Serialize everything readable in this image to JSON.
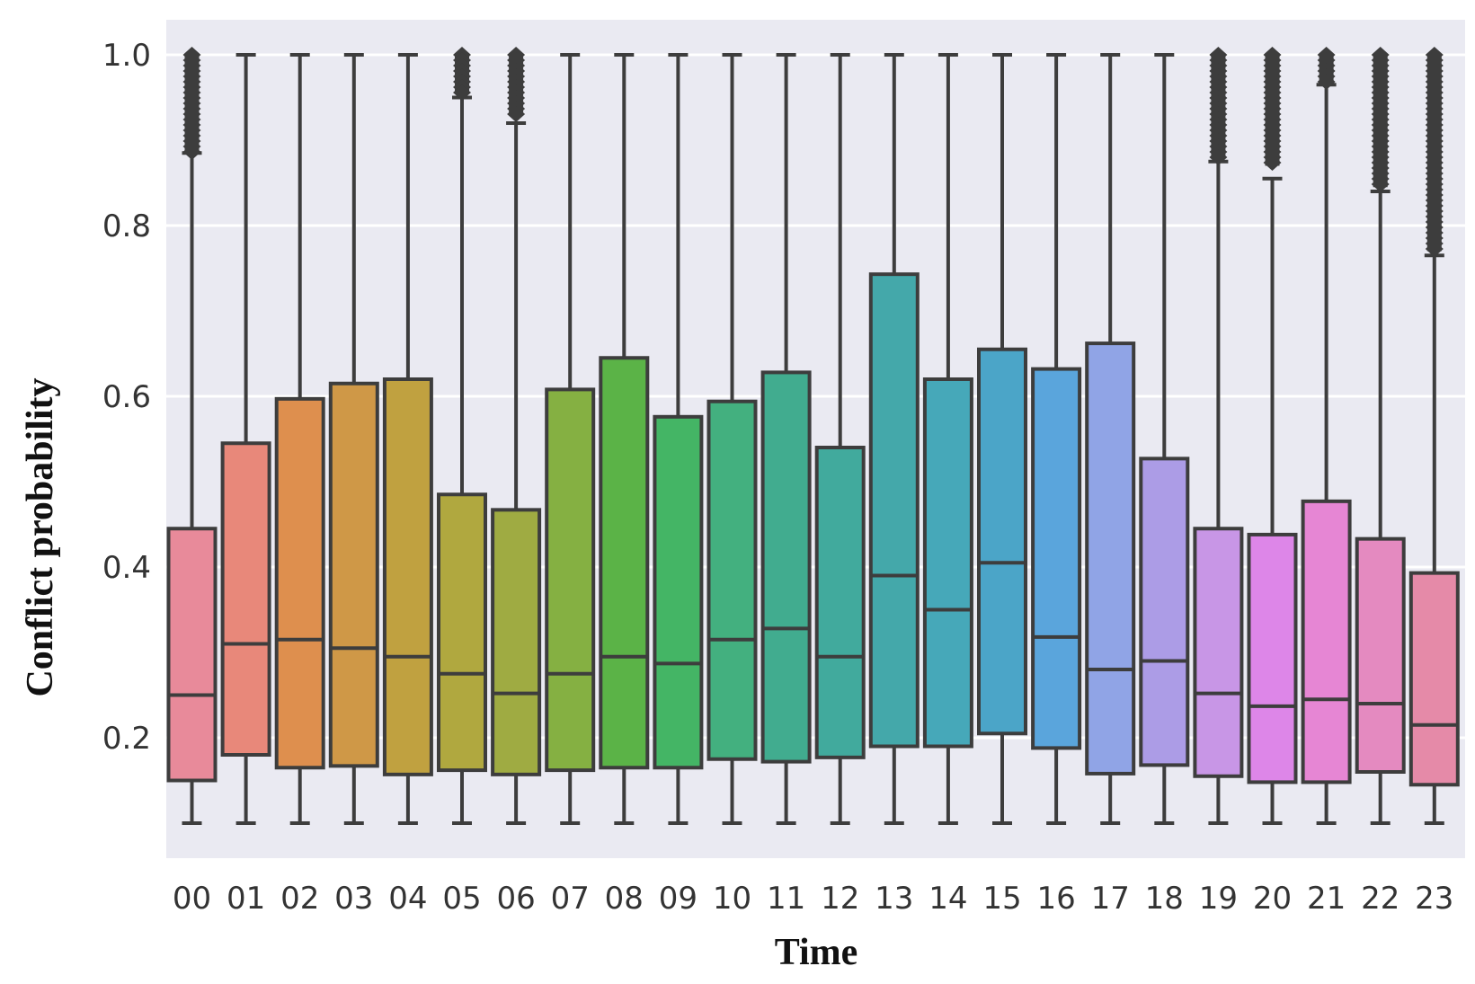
{
  "chart_data": {
    "type": "box",
    "xlabel": "Time",
    "ylabel": "Conflict probability",
    "ylim": [
      0.0,
      1.05
    ],
    "yticks": [
      "0.2",
      "0.4",
      "0.6",
      "0.8",
      "1.0"
    ],
    "ytick_values": [
      0.2,
      0.4,
      0.6,
      0.8,
      1.0
    ],
    "grid": true,
    "background": "#eaeaf2",
    "gridColor": "#ffffff",
    "lineColor": "#3d3d3d",
    "categories": [
      "00",
      "01",
      "02",
      "03",
      "04",
      "05",
      "06",
      "07",
      "08",
      "09",
      "10",
      "11",
      "12",
      "13",
      "14",
      "15",
      "16",
      "17",
      "18",
      "19",
      "20",
      "21",
      "22",
      "23"
    ],
    "boxes": [
      {
        "whislo": 0.1,
        "q1": 0.15,
        "med": 0.25,
        "q3": 0.445,
        "whishi": 0.885,
        "outliers_from": 0.885,
        "outliers_to": 1.0,
        "color": "#e88a9a"
      },
      {
        "whislo": 0.1,
        "q1": 0.18,
        "med": 0.31,
        "q3": 0.545,
        "whishi": 1.0,
        "color": "#e8887a"
      },
      {
        "whislo": 0.1,
        "q1": 0.165,
        "med": 0.315,
        "q3": 0.597,
        "whishi": 1.0,
        "color": "#de8f4e"
      },
      {
        "whislo": 0.1,
        "q1": 0.167,
        "med": 0.305,
        "q3": 0.615,
        "whishi": 1.0,
        "color": "#cf9847"
      },
      {
        "whislo": 0.1,
        "q1": 0.157,
        "med": 0.295,
        "q3": 0.62,
        "whishi": 1.0,
        "color": "#c0a140"
      },
      {
        "whislo": 0.1,
        "q1": 0.162,
        "med": 0.275,
        "q3": 0.485,
        "whishi": 0.95,
        "outliers_from": 0.955,
        "outliers_to": 1.0,
        "color": "#b0a83f"
      },
      {
        "whislo": 0.1,
        "q1": 0.157,
        "med": 0.252,
        "q3": 0.467,
        "whishi": 0.92,
        "outliers_from": 0.93,
        "outliers_to": 1.0,
        "color": "#9fab42"
      },
      {
        "whislo": 0.1,
        "q1": 0.162,
        "med": 0.275,
        "q3": 0.608,
        "whishi": 1.0,
        "color": "#85b042"
      },
      {
        "whislo": 0.1,
        "q1": 0.165,
        "med": 0.295,
        "q3": 0.645,
        "whishi": 1.0,
        "color": "#5bb347"
      },
      {
        "whislo": 0.1,
        "q1": 0.165,
        "med": 0.287,
        "q3": 0.576,
        "whishi": 1.0,
        "color": "#44b565"
      },
      {
        "whislo": 0.1,
        "q1": 0.175,
        "med": 0.315,
        "q3": 0.594,
        "whishi": 1.0,
        "color": "#43b07f"
      },
      {
        "whislo": 0.1,
        "q1": 0.172,
        "med": 0.328,
        "q3": 0.628,
        "whishi": 1.0,
        "color": "#41ac8f"
      },
      {
        "whislo": 0.1,
        "q1": 0.177,
        "med": 0.295,
        "q3": 0.54,
        "whishi": 1.0,
        "color": "#41aa9d"
      },
      {
        "whislo": 0.1,
        "q1": 0.19,
        "med": 0.39,
        "q3": 0.743,
        "whishi": 1.0,
        "color": "#44a8aa"
      },
      {
        "whislo": 0.1,
        "q1": 0.19,
        "med": 0.35,
        "q3": 0.62,
        "whishi": 1.0,
        "color": "#46a8b9"
      },
      {
        "whislo": 0.1,
        "q1": 0.205,
        "med": 0.405,
        "q3": 0.655,
        "whishi": 1.0,
        "color": "#4ba5c8"
      },
      {
        "whislo": 0.1,
        "q1": 0.188,
        "med": 0.318,
        "q3": 0.632,
        "whishi": 1.0,
        "color": "#5aa5dc"
      },
      {
        "whislo": 0.1,
        "q1": 0.158,
        "med": 0.28,
        "q3": 0.662,
        "whishi": 1.0,
        "color": "#90a4e6"
      },
      {
        "whislo": 0.1,
        "q1": 0.168,
        "med": 0.29,
        "q3": 0.527,
        "whishi": 1.0,
        "color": "#ac9ce6"
      },
      {
        "whislo": 0.1,
        "q1": 0.155,
        "med": 0.252,
        "q3": 0.445,
        "whishi": 0.875,
        "outliers_from": 0.88,
        "outliers_to": 1.0,
        "color": "#c896e6"
      },
      {
        "whislo": 0.1,
        "q1": 0.148,
        "med": 0.237,
        "q3": 0.438,
        "whishi": 0.855,
        "outliers_from": 0.87,
        "outliers_to": 1.0,
        "color": "#dd86e8"
      },
      {
        "whislo": 0.1,
        "q1": 0.148,
        "med": 0.245,
        "q3": 0.477,
        "whishi": 0.965,
        "outliers_from": 0.965,
        "outliers_to": 1.0,
        "color": "#e686d4"
      },
      {
        "whislo": 0.1,
        "q1": 0.16,
        "med": 0.24,
        "q3": 0.433,
        "whishi": 0.84,
        "outliers_from": 0.845,
        "outliers_to": 1.0,
        "color": "#e48ac0"
      },
      {
        "whislo": 0.1,
        "q1": 0.145,
        "med": 0.215,
        "q3": 0.393,
        "whishi": 0.765,
        "outliers_from": 0.77,
        "outliers_to": 1.0,
        "color": "#e58aa8"
      }
    ]
  }
}
